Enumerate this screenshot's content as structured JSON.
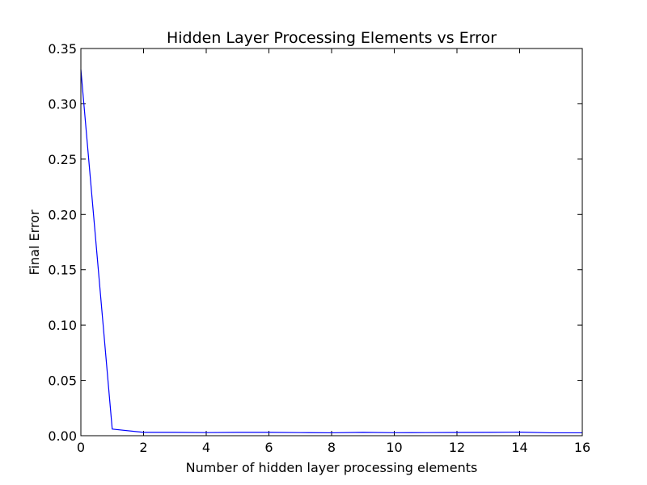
{
  "chart_data": {
    "type": "line",
    "title": "Hidden Layer Processing Elements vs Error",
    "xlabel": "Number of hidden layer processing elements",
    "ylabel": "Final Error",
    "xlim": [
      0,
      16
    ],
    "ylim": [
      0,
      0.35
    ],
    "xticks": [
      0,
      2,
      4,
      6,
      8,
      10,
      12,
      14,
      16
    ],
    "xtick_labels": [
      "0",
      "2",
      "4",
      "6",
      "8",
      "10",
      "12",
      "14",
      "16"
    ],
    "yticks": [
      0,
      0.05,
      0.1,
      0.15,
      0.2,
      0.25,
      0.3,
      0.35
    ],
    "ytick_labels": [
      "0.00",
      "0.05",
      "0.10",
      "0.15",
      "0.20",
      "0.25",
      "0.30",
      "0.35"
    ],
    "grid": false,
    "legend": "none",
    "series": [
      {
        "color": "#0000ff",
        "x": [
          0,
          1,
          2,
          3,
          4,
          5,
          6,
          7,
          8,
          9,
          10,
          11,
          12,
          13,
          14,
          15,
          16
        ],
        "values": [
          0.331,
          0.006,
          0.003,
          0.003,
          0.0028,
          0.003,
          0.003,
          0.0028,
          0.0026,
          0.003,
          0.0027,
          0.0028,
          0.0029,
          0.003,
          0.0032,
          0.0026,
          0.0026
        ]
      }
    ]
  }
}
